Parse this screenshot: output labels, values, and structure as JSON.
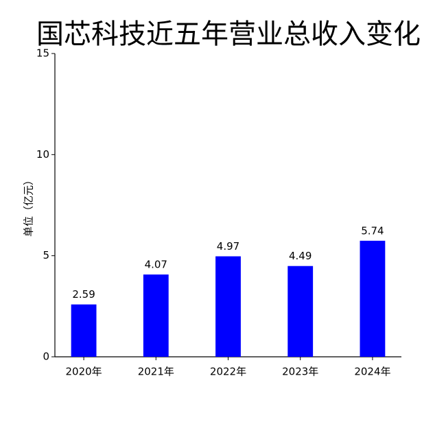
{
  "chart_data": {
    "type": "bar",
    "title": "国芯科技近五年营业总收入变化",
    "y_label": "单位（亿元）",
    "categories": [
      "2020年",
      "2021年",
      "2022年",
      "2023年",
      "2024年"
    ],
    "values": [
      2.59,
      4.07,
      4.97,
      4.49,
      5.74
    ],
    "color": "#0000ff",
    "ylim": [
      0,
      15
    ],
    "yticks": [
      0,
      5,
      10,
      15
    ],
    "grid": false
  }
}
